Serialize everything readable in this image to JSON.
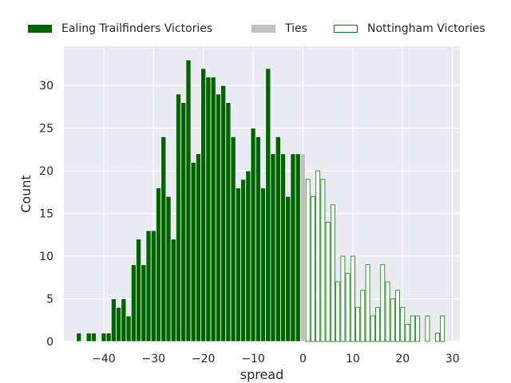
{
  "chart_data": {
    "type": "bar",
    "xlabel": "spread",
    "ylabel": "Count",
    "xlim": [
      -48,
      31.5
    ],
    "ylim": [
      0,
      34.6
    ],
    "xticks": [
      -40,
      -30,
      -20,
      -10,
      0,
      10,
      20,
      30
    ],
    "xtick_labels": [
      "−40",
      "−30",
      "−20",
      "−10",
      "0",
      "10",
      "20",
      "30"
    ],
    "yticks": [
      0,
      5,
      10,
      15,
      20,
      25,
      30
    ],
    "ytick_labels": [
      "0",
      "5",
      "10",
      "15",
      "20",
      "25",
      "30"
    ],
    "grid": true,
    "legend_position": "top",
    "series": [
      {
        "name": "Ealing Trailfinders Victories",
        "color": "#006400",
        "style": "filled",
        "x": [
          -46,
          -45,
          -44,
          -43,
          -42,
          -41,
          -40,
          -39,
          -38,
          -37,
          -36,
          -35,
          -34,
          -33,
          -32,
          -31,
          -30,
          -29,
          -28,
          -27,
          -26,
          -25,
          -24,
          -23,
          -22,
          -21,
          -20,
          -19,
          -18,
          -17,
          -16,
          -15,
          -14,
          -13,
          -12,
          -11,
          -10,
          -9,
          -8,
          -7,
          -6,
          -5,
          -4,
          -3,
          -2,
          -1
        ],
        "values": [
          0,
          1,
          0,
          1,
          1,
          0,
          1,
          1,
          5,
          4,
          5,
          3,
          9,
          12,
          9,
          13,
          13,
          18,
          24,
          17,
          12,
          29,
          28,
          33,
          21,
          22,
          32,
          31,
          31,
          29,
          30,
          28,
          24,
          18,
          19,
          20,
          25,
          24,
          18,
          32,
          22,
          24,
          22,
          17,
          22,
          22
        ]
      },
      {
        "name": "Ties",
        "color": "#c0c0c0",
        "style": "filled",
        "x": [
          0
        ],
        "values": [
          22
        ]
      },
      {
        "name": "Nottingham Victories",
        "color": "#008000",
        "style": "outline",
        "x": [
          1,
          2,
          3,
          4,
          5,
          6,
          7,
          8,
          9,
          10,
          11,
          12,
          13,
          14,
          15,
          16,
          17,
          18,
          19,
          20,
          21,
          22,
          23,
          24,
          25,
          26,
          27,
          28
        ],
        "values": [
          19,
          17,
          20,
          19,
          14,
          16,
          7,
          10,
          8,
          10,
          4,
          6,
          9,
          3,
          4,
          9,
          7,
          5,
          6,
          4,
          2,
          3,
          3,
          0,
          3,
          0,
          1,
          3
        ]
      }
    ]
  }
}
